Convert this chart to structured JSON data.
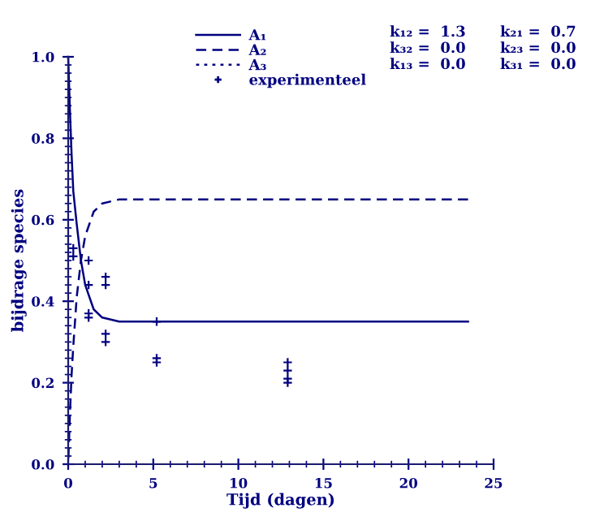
{
  "chart_data": {
    "type": "line",
    "xlabel": "Tijd (dagen)",
    "ylabel": "bijdrage species",
    "xlim": [
      0,
      25
    ],
    "xticks": [
      0,
      5,
      10,
      15,
      20,
      25
    ],
    "ylim": [
      0.0,
      1.0
    ],
    "yticks": [
      {
        "value": 0,
        "label": "0.0"
      },
      0.2,
      0.4,
      0.6,
      0.8,
      {
        "value": 1,
        "label": "1.0"
      }
    ],
    "grid": false,
    "legend": "top left",
    "series": [
      {
        "name": "A₁",
        "color": "#000080",
        "line_style": "solid",
        "x": [
          0,
          0.1,
          0.2,
          0.3,
          0.5,
          0.75,
          1,
          1.5,
          2,
          3,
          5,
          10,
          23.5
        ],
        "values": [
          1.0,
          0.87,
          0.76,
          0.67,
          0.59,
          0.5,
          0.44,
          0.38,
          0.36,
          0.35,
          0.35,
          0.35,
          0.35
        ]
      },
      {
        "name": "A₂",
        "color": "#000080",
        "line_style": "dashed",
        "x": [
          0,
          0.1,
          0.2,
          0.3,
          0.5,
          0.75,
          1,
          1.5,
          2,
          3,
          23.5
        ],
        "values": [
          0.0,
          0.12,
          0.22,
          0.29,
          0.41,
          0.5,
          0.56,
          0.62,
          0.64,
          0.65,
          0.65
        ]
      },
      {
        "name": "A₃",
        "color": "#000080",
        "line_style": "dotted"
      },
      {
        "name": "experimenteel",
        "color": "#000080",
        "type": "scatter",
        "marker": "cross",
        "x": [
          0.3,
          0.3,
          1.2,
          1.2,
          1.2,
          1.2,
          2.2,
          2.2,
          2.2,
          2.2,
          5.2,
          5.2,
          5.2,
          12.9,
          12.9,
          12.9,
          12.9
        ],
        "values": [
          0.53,
          0.51,
          0.5,
          0.44,
          0.37,
          0.36,
          0.46,
          0.44,
          0.32,
          0.3,
          0.35,
          0.26,
          0.25,
          0.25,
          0.23,
          0.21,
          0.2
        ]
      }
    ],
    "annotations": [
      "k₁₂ =  1.3",
      "k₂₁ =  0.7",
      "k₃₂ =  0.0",
      "k₂₃ =  0.0",
      "k₁₃ =  0.0",
      "k₃₁ =  0.0"
    ]
  }
}
